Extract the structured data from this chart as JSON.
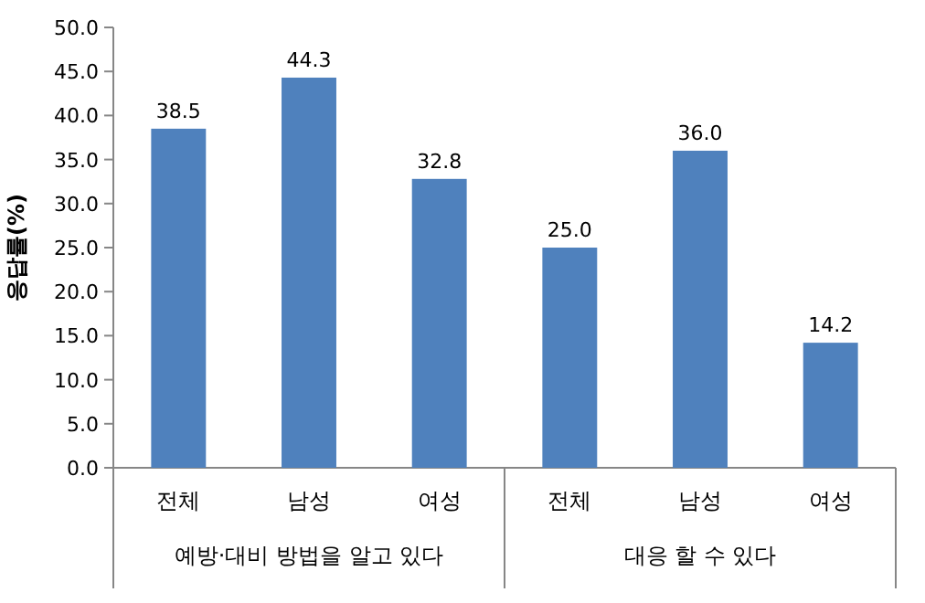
{
  "chart_data": {
    "type": "bar",
    "ylabel": "응답률(%)",
    "categories": [
      "전체",
      "남성",
      "여성",
      "전체",
      "남성",
      "여성"
    ],
    "values": [
      38.5,
      44.3,
      32.8,
      25.0,
      36.0,
      14.2
    ],
    "value_labels": [
      "38.5",
      "44.3",
      "32.8",
      "25.0",
      "36.0",
      "14.2"
    ],
    "color": "#4f81bd",
    "ylim": [
      0,
      50
    ],
    "yticks": [
      {
        "value": 0,
        "label": "0.0"
      },
      {
        "value": 5,
        "label": "5.0"
      },
      {
        "value": 10,
        "label": "10.0"
      },
      {
        "value": 15,
        "label": "15.0"
      },
      {
        "value": 20,
        "label": "20.0"
      },
      {
        "value": 25,
        "label": "25.0"
      },
      {
        "value": 30,
        "label": "30.0"
      },
      {
        "value": 35,
        "label": "35.0"
      },
      {
        "value": 40,
        "label": "40.0"
      },
      {
        "value": 45,
        "label": "45.0"
      },
      {
        "value": 50,
        "label": "50.0"
      }
    ],
    "annotations": [
      "예방·대비 방법을 알고 있다",
      "대응 할 수 있다"
    ]
  }
}
